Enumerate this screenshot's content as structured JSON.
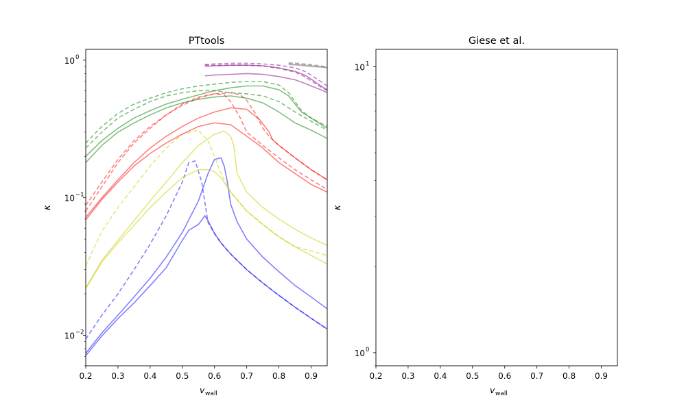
{
  "chart_data": [
    {
      "type": "line",
      "title": "PTtools",
      "xlabel": "v_wall",
      "xlabel_main": "v",
      "xlabel_sub": "wall",
      "ylabel": "κ",
      "yscale": "log",
      "xlim": [
        0.2,
        0.95
      ],
      "ylim": [
        0.006,
        1.2
      ],
      "xticks": [
        0.2,
        0.3,
        0.4,
        0.5,
        0.6,
        0.7,
        0.8,
        0.9
      ],
      "xtick_labels": [
        "0.2",
        "0.3",
        "0.4",
        "0.5",
        "0.6",
        "0.7",
        "0.8",
        "0.9"
      ],
      "yticks": [
        0.01,
        0.1,
        1
      ],
      "ytick_labels_base": [
        "10",
        "10",
        "10"
      ],
      "ytick_labels_exp": [
        "−2",
        "−1",
        "0"
      ],
      "series": [
        {
          "color": "#0000ff",
          "dash": false,
          "x": [
            0.2,
            0.25,
            0.3,
            0.35,
            0.4,
            0.45,
            0.5,
            0.52,
            0.55,
            0.57,
            0.58,
            0.6,
            0.62,
            0.65,
            0.7,
            0.75,
            0.8,
            0.85,
            0.9,
            0.95
          ],
          "y": [
            0.0071,
            0.0099,
            0.0132,
            0.0172,
            0.023,
            0.031,
            0.049,
            0.058,
            0.064,
            0.074,
            0.068,
            0.055,
            0.047,
            0.039,
            0.03,
            0.024,
            0.0195,
            0.016,
            0.0133,
            0.0111
          ]
        },
        {
          "color": "#0000ff",
          "dash": false,
          "x": [
            0.2,
            0.25,
            0.3,
            0.35,
            0.4,
            0.45,
            0.5,
            0.55,
            0.58,
            0.6,
            0.62,
            0.63,
            0.64,
            0.65,
            0.67,
            0.7,
            0.75,
            0.8,
            0.85,
            0.9,
            0.95
          ],
          "y": [
            0.0074,
            0.0104,
            0.014,
            0.019,
            0.026,
            0.037,
            0.056,
            0.095,
            0.15,
            0.19,
            0.195,
            0.17,
            0.13,
            0.09,
            0.067,
            0.05,
            0.037,
            0.029,
            0.023,
            0.019,
            0.0156
          ]
        },
        {
          "color": "#0000ff",
          "dash": true,
          "x": [
            0.2,
            0.25,
            0.3,
            0.35,
            0.4,
            0.45,
            0.5,
            0.52,
            0.54,
            0.56,
            0.58,
            0.6,
            0.62,
            0.65,
            0.7,
            0.75,
            0.8,
            0.85,
            0.9,
            0.95
          ],
          "y": [
            0.0094,
            0.014,
            0.02,
            0.03,
            0.046,
            0.074,
            0.13,
            0.18,
            0.185,
            0.13,
            0.066,
            0.055,
            0.047,
            0.039,
            0.03,
            0.024,
            0.0195,
            0.016,
            0.0133,
            0.0111
          ]
        },
        {
          "color": "#cccc00",
          "dash": false,
          "x": [
            0.2,
            0.25,
            0.3,
            0.35,
            0.4,
            0.45,
            0.5,
            0.55,
            0.58,
            0.6,
            0.62,
            0.65,
            0.7,
            0.75,
            0.8,
            0.85,
            0.9,
            0.95
          ],
          "y": [
            0.022,
            0.034,
            0.047,
            0.063,
            0.085,
            0.11,
            0.14,
            0.16,
            0.16,
            0.155,
            0.14,
            0.11,
            0.08,
            0.064,
            0.052,
            0.044,
            0.038,
            0.033
          ]
        },
        {
          "color": "#cccc00",
          "dash": false,
          "x": [
            0.2,
            0.25,
            0.3,
            0.35,
            0.4,
            0.45,
            0.5,
            0.55,
            0.6,
            0.63,
            0.65,
            0.66,
            0.67,
            0.7,
            0.75,
            0.8,
            0.85,
            0.9,
            0.95
          ],
          "y": [
            0.022,
            0.035,
            0.049,
            0.068,
            0.095,
            0.13,
            0.18,
            0.24,
            0.29,
            0.305,
            0.28,
            0.24,
            0.15,
            0.11,
            0.085,
            0.07,
            0.059,
            0.051,
            0.045
          ]
        },
        {
          "color": "#cccc00",
          "dash": true,
          "x": [
            0.2,
            0.25,
            0.3,
            0.35,
            0.4,
            0.45,
            0.5,
            0.55,
            0.58,
            0.6,
            0.62,
            0.65,
            0.7,
            0.75,
            0.8,
            0.85,
            0.9,
            0.95
          ],
          "y": [
            0.032,
            0.057,
            0.085,
            0.12,
            0.17,
            0.23,
            0.29,
            0.31,
            0.26,
            0.2,
            0.15,
            0.11,
            0.08,
            0.064,
            0.052,
            0.044,
            0.041,
            0.038
          ]
        },
        {
          "color": "#ff0000",
          "dash": false,
          "x": [
            0.2,
            0.25,
            0.3,
            0.35,
            0.4,
            0.45,
            0.5,
            0.55,
            0.6,
            0.65,
            0.7,
            0.75,
            0.8,
            0.85,
            0.9,
            0.95
          ],
          "y": [
            0.069,
            0.097,
            0.13,
            0.17,
            0.21,
            0.25,
            0.29,
            0.33,
            0.35,
            0.34,
            0.28,
            0.23,
            0.18,
            0.15,
            0.125,
            0.11
          ]
        },
        {
          "color": "#ff0000",
          "dash": false,
          "x": [
            0.2,
            0.25,
            0.3,
            0.35,
            0.4,
            0.45,
            0.5,
            0.55,
            0.6,
            0.65,
            0.7,
            0.74,
            0.77,
            0.78,
            0.8,
            0.85,
            0.9,
            0.95
          ],
          "y": [
            0.072,
            0.1,
            0.135,
            0.18,
            0.23,
            0.28,
            0.33,
            0.38,
            0.42,
            0.45,
            0.44,
            0.37,
            0.3,
            0.265,
            0.24,
            0.195,
            0.16,
            0.135
          ]
        },
        {
          "color": "#ff0000",
          "dash": true,
          "x": [
            0.2,
            0.25,
            0.3,
            0.35,
            0.4,
            0.45,
            0.5,
            0.55,
            0.6,
            0.63,
            0.65,
            0.68,
            0.7,
            0.75,
            0.8,
            0.85,
            0.9,
            0.95
          ],
          "y": [
            0.08,
            0.12,
            0.18,
            0.25,
            0.32,
            0.4,
            0.48,
            0.54,
            0.57,
            0.56,
            0.5,
            0.38,
            0.3,
            0.24,
            0.195,
            0.16,
            0.135,
            0.115
          ]
        },
        {
          "color": "#ff0000",
          "dash": true,
          "x": [
            0.2,
            0.25,
            0.3,
            0.35,
            0.4,
            0.45,
            0.5,
            0.55,
            0.6,
            0.65,
            0.68,
            0.7,
            0.73,
            0.75,
            0.77,
            0.78,
            0.8,
            0.85,
            0.9,
            0.95
          ],
          "y": [
            0.088,
            0.13,
            0.19,
            0.26,
            0.33,
            0.4,
            0.47,
            0.53,
            0.57,
            0.58,
            0.56,
            0.51,
            0.4,
            0.32,
            0.28,
            0.265,
            0.24,
            0.195,
            0.16,
            0.135
          ]
        },
        {
          "color": "#008000",
          "dash": false,
          "x": [
            0.2,
            0.25,
            0.3,
            0.35,
            0.4,
            0.45,
            0.5,
            0.55,
            0.6,
            0.65,
            0.7,
            0.75,
            0.8,
            0.85,
            0.9,
            0.95
          ],
          "y": [
            0.18,
            0.24,
            0.3,
            0.35,
            0.4,
            0.45,
            0.49,
            0.52,
            0.54,
            0.55,
            0.53,
            0.49,
            0.42,
            0.35,
            0.31,
            0.27
          ]
        },
        {
          "color": "#008000",
          "dash": false,
          "x": [
            0.2,
            0.25,
            0.3,
            0.35,
            0.4,
            0.45,
            0.5,
            0.55,
            0.6,
            0.65,
            0.7,
            0.75,
            0.8,
            0.83,
            0.85,
            0.87,
            0.9,
            0.95
          ],
          "y": [
            0.2,
            0.26,
            0.32,
            0.38,
            0.43,
            0.48,
            0.52,
            0.56,
            0.6,
            0.63,
            0.65,
            0.65,
            0.61,
            0.55,
            0.48,
            0.42,
            0.38,
            0.32
          ]
        },
        {
          "color": "#008000",
          "dash": true,
          "x": [
            0.2,
            0.25,
            0.3,
            0.35,
            0.4,
            0.45,
            0.5,
            0.55,
            0.6,
            0.65,
            0.7,
            0.75,
            0.8,
            0.85,
            0.9,
            0.95
          ],
          "y": [
            0.23,
            0.3,
            0.38,
            0.44,
            0.5,
            0.55,
            0.58,
            0.6,
            0.6,
            0.58,
            0.57,
            0.55,
            0.5,
            0.42,
            0.36,
            0.31
          ]
        },
        {
          "color": "#008000",
          "dash": true,
          "x": [
            0.2,
            0.25,
            0.3,
            0.35,
            0.4,
            0.45,
            0.5,
            0.55,
            0.6,
            0.65,
            0.7,
            0.75,
            0.8,
            0.83,
            0.85,
            0.87,
            0.9,
            0.95
          ],
          "y": [
            0.25,
            0.33,
            0.41,
            0.48,
            0.53,
            0.58,
            0.62,
            0.65,
            0.67,
            0.69,
            0.7,
            0.7,
            0.66,
            0.58,
            0.5,
            0.43,
            0.38,
            0.33
          ]
        },
        {
          "color": "#800080",
          "dash": false,
          "x": [
            0.57,
            0.6,
            0.65,
            0.7,
            0.75,
            0.8,
            0.85,
            0.88,
            0.9,
            0.93,
            0.95
          ],
          "y": [
            0.77,
            0.78,
            0.79,
            0.8,
            0.79,
            0.76,
            0.72,
            0.68,
            0.65,
            0.61,
            0.58
          ]
        },
        {
          "color": "#800080",
          "dash": false,
          "x": [
            0.57,
            0.6,
            0.65,
            0.7,
            0.75,
            0.8,
            0.85,
            0.88,
            0.9,
            0.93,
            0.95
          ],
          "y": [
            0.9,
            0.91,
            0.92,
            0.92,
            0.91,
            0.88,
            0.83,
            0.78,
            0.73,
            0.65,
            0.61
          ]
        },
        {
          "color": "#800080",
          "dash": true,
          "x": [
            0.57,
            0.6,
            0.65,
            0.7,
            0.75,
            0.8,
            0.85,
            0.88,
            0.9,
            0.93,
            0.95
          ],
          "y": [
            0.92,
            0.92,
            0.92,
            0.92,
            0.91,
            0.87,
            0.82,
            0.76,
            0.71,
            0.64,
            0.6
          ]
        },
        {
          "color": "#800080",
          "dash": true,
          "x": [
            0.57,
            0.6,
            0.65,
            0.7,
            0.75,
            0.8,
            0.85,
            0.88,
            0.9,
            0.93,
            0.95
          ],
          "y": [
            0.93,
            0.94,
            0.95,
            0.95,
            0.94,
            0.92,
            0.88,
            0.83,
            0.78,
            0.7,
            0.65
          ]
        },
        {
          "color": "#808080",
          "dash": false,
          "x": [
            0.83,
            0.86,
            0.9,
            0.93,
            0.95
          ],
          "y": [
            0.93,
            0.92,
            0.9,
            0.89,
            0.88
          ]
        },
        {
          "color": "#808080",
          "dash": false,
          "x": [
            0.83,
            0.86,
            0.9,
            0.93,
            0.95
          ],
          "y": [
            0.94,
            0.93,
            0.91,
            0.9,
            0.89
          ]
        },
        {
          "color": "#808080",
          "dash": true,
          "x": [
            0.83,
            0.86,
            0.9,
            0.93,
            0.95
          ],
          "y": [
            0.95,
            0.94,
            0.92,
            0.9,
            0.88
          ]
        },
        {
          "color": "#808080",
          "dash": true,
          "x": [
            0.83,
            0.86,
            0.9,
            0.93,
            0.95
          ],
          "y": [
            0.96,
            0.95,
            0.93,
            0.91,
            0.89
          ]
        }
      ]
    },
    {
      "type": "line",
      "title": "Giese et al.",
      "xlabel": "v_wall",
      "xlabel_main": "v",
      "xlabel_sub": "wall",
      "ylabel": "κ",
      "yscale": "log",
      "xlim": [
        0.2,
        0.95
      ],
      "ylim": [
        0.9,
        11.5
      ],
      "xticks": [
        0.2,
        0.3,
        0.4,
        0.5,
        0.6,
        0.7,
        0.8,
        0.9
      ],
      "xtick_labels": [
        "0.2",
        "0.3",
        "0.4",
        "0.5",
        "0.6",
        "0.7",
        "0.8",
        "0.9"
      ],
      "yticks": [
        1,
        10
      ],
      "ytick_labels_base": [
        "10",
        "10"
      ],
      "ytick_labels_exp": [
        "0",
        "1"
      ],
      "series": []
    }
  ]
}
